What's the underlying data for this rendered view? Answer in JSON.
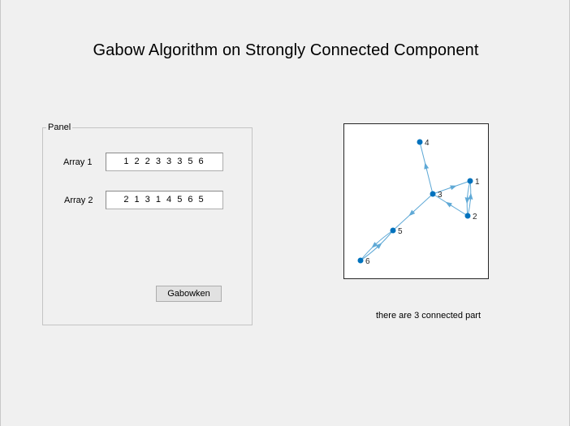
{
  "title": "Gabow Algorithm on Strongly Connected Component",
  "panel": {
    "label": "Panel",
    "array1_label": "Array 1",
    "array1_value": "1 2 2 3 3 3 5 6",
    "array2_label": "Array 2",
    "array2_value": "2 1 3 1 4 5 6 5",
    "button_label": "Gabowken"
  },
  "graph": {
    "node_color": "#0072bd",
    "edge_color": "#5fa9d6",
    "nodes": [
      "1",
      "2",
      "3",
      "4",
      "5",
      "6"
    ],
    "edges": [
      [
        "1",
        "2"
      ],
      [
        "2",
        "1"
      ],
      [
        "2",
        "3"
      ],
      [
        "3",
        "1"
      ],
      [
        "3",
        "4"
      ],
      [
        "3",
        "5"
      ],
      [
        "5",
        "6"
      ],
      [
        "6",
        "5"
      ]
    ]
  },
  "status_text": "there are 3 connected part"
}
